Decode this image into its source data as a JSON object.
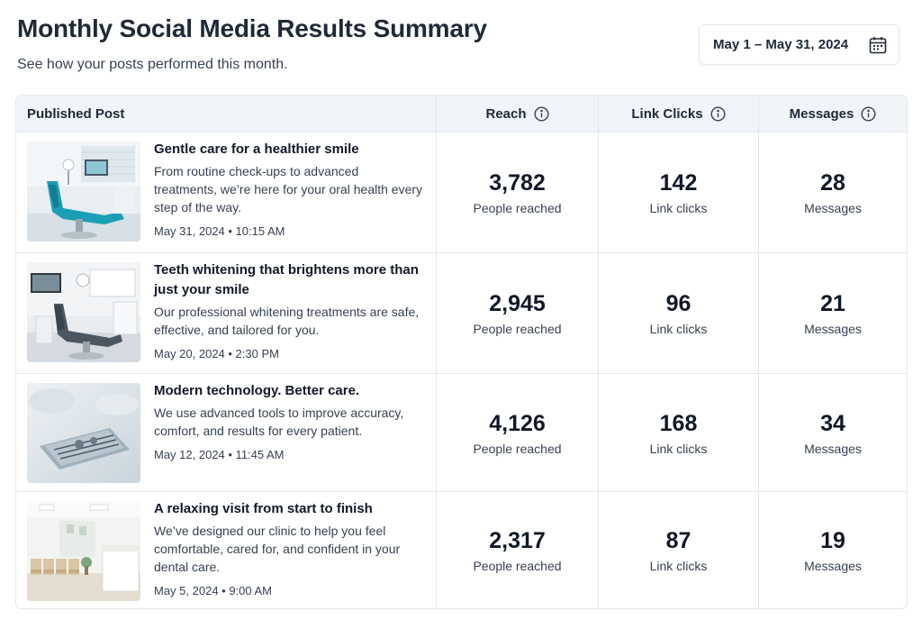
{
  "header": {
    "title": "Monthly Social Media Results Summary",
    "subtitle": "See how your posts performed this month.",
    "date_range": "May 1 – May 31, 2024"
  },
  "table": {
    "columns": {
      "post": "Published Post",
      "reach": "Reach",
      "clicks": "Link Clicks",
      "messages": "Messages"
    },
    "rows": [
      {
        "title": "Gentle care for a healthier smile",
        "description": "From routine check-ups to advanced treatments, we’re here for your oral health every step of the way.",
        "date": "May 31, 2024 • 10:15 AM",
        "reach": "3,782",
        "reach_label": "People reached",
        "clicks": "142",
        "clicks_label": "Link clicks",
        "messages": "28",
        "messages_label": "Messages",
        "image": "dental-chair-photo"
      },
      {
        "title": "Teeth whitening that brightens more than just your smile",
        "description": "Our professional whitening treatments are safe, effective, and tailored for you.",
        "date": "May 20, 2024 • 2:30 PM",
        "reach": "2,945",
        "reach_label": "People reached",
        "clicks": "96",
        "clicks_label": "Link clicks",
        "messages": "21",
        "messages_label": "Messages",
        "image": "treatment-room-photo"
      },
      {
        "title": "Modern technology. Better care.",
        "description": "We use advanced tools to improve accuracy, comfort, and results for every patient.",
        "date": "May 12, 2024 • 11:45 AM",
        "reach": "4,126",
        "reach_label": "People reached",
        "clicks": "168",
        "clicks_label": "Link clicks",
        "messages": "34",
        "messages_label": "Messages",
        "image": "dental-instruments-photo"
      },
      {
        "title": "A relaxing visit from start to finish",
        "description": "We’ve designed our clinic to help you feel comfortable, cared for, and confident in your dental care.",
        "date": "May 5, 2024 • 9:00 AM",
        "reach": "2,317",
        "reach_label": "People reached",
        "clicks": "87",
        "clicks_label": "Link clicks",
        "messages": "19",
        "messages_label": "Messages",
        "image": "waiting-room-photo"
      }
    ]
  },
  "icons": {
    "date_picker": "calendar-icon",
    "column_info": "info-icon"
  },
  "colors": {
    "header_bg": "#f1f5f9",
    "border": "#e5e7eb",
    "accent_teal": "#1a9fb5"
  }
}
